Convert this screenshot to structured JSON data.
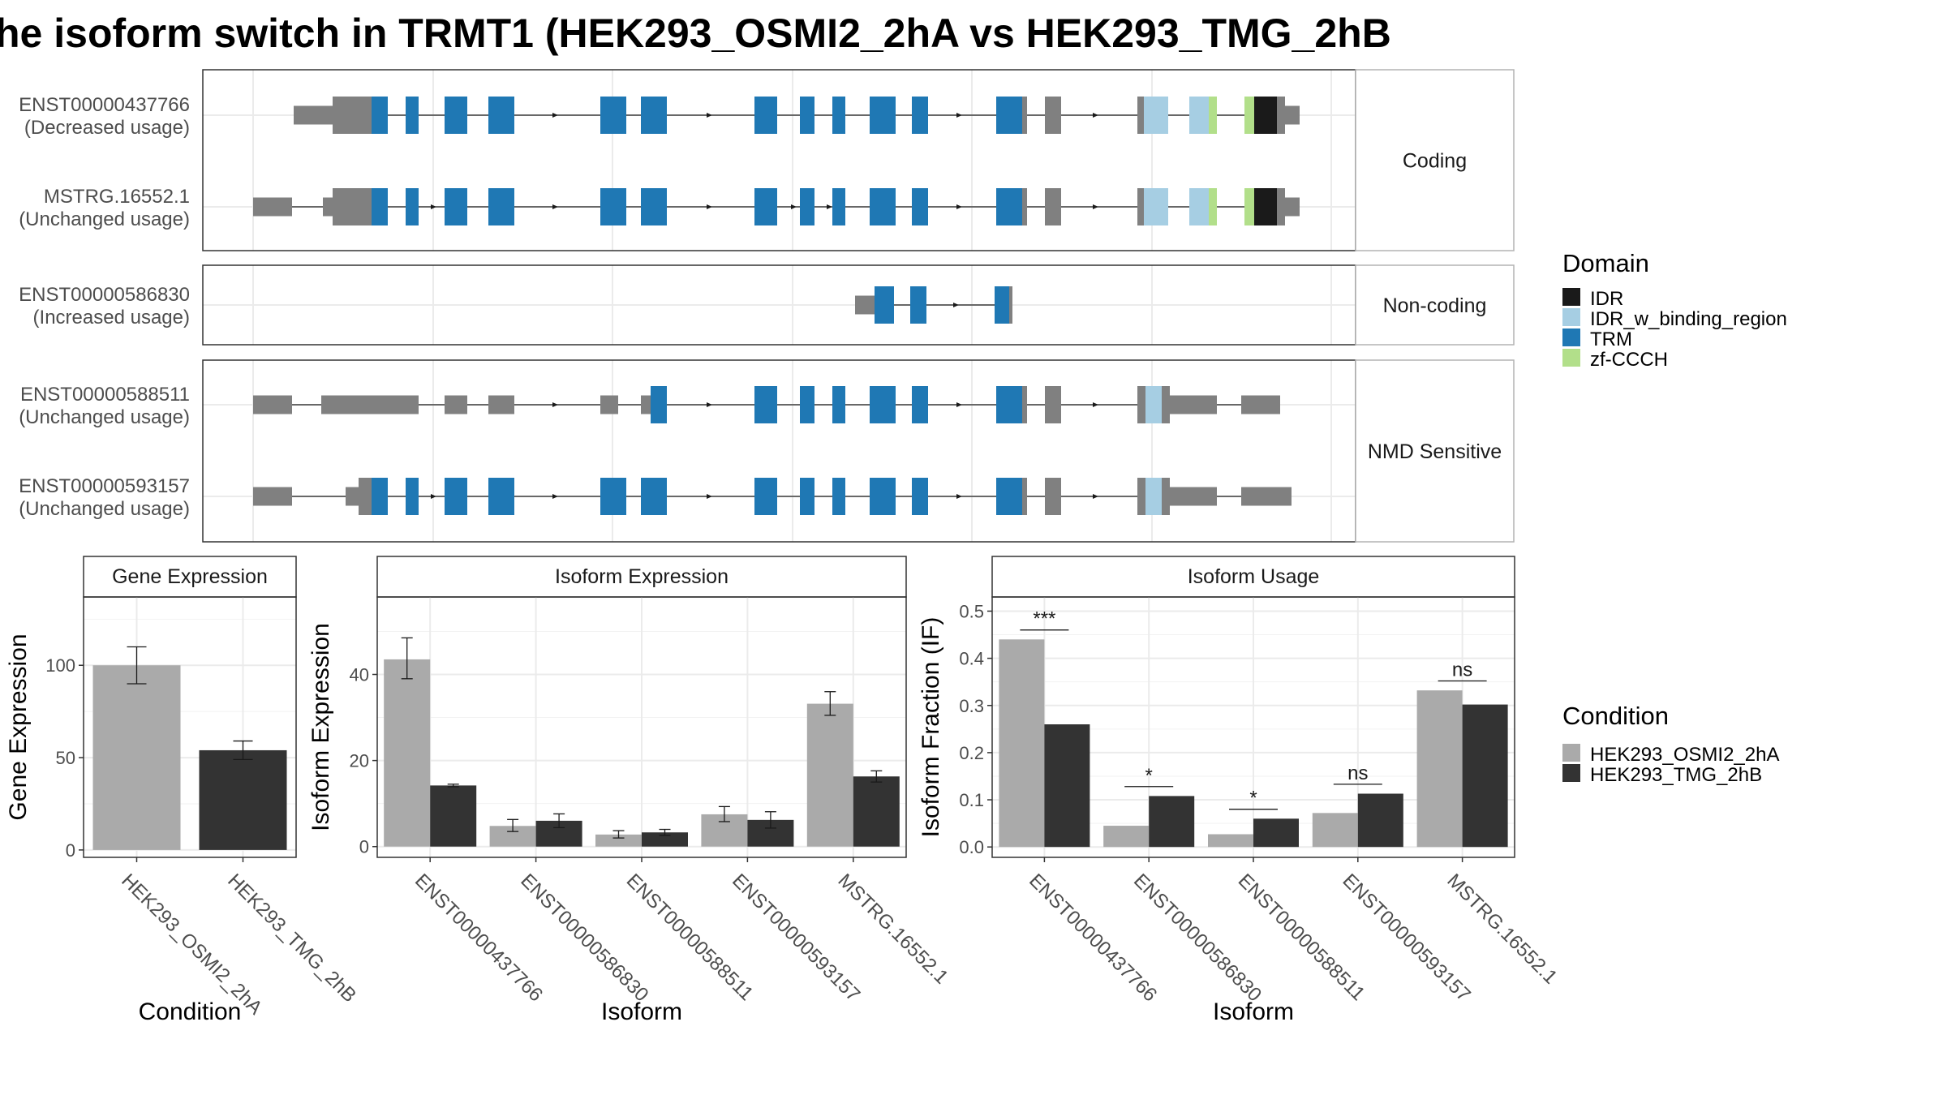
{
  "title": "he isoform switch in TRMT1 (HEK293_OSMI2_2hA vs HEK293_TMG_2hB",
  "colors": {
    "intron_line": "#1a1a1a",
    "utr": "#808080",
    "domains": {
      "IDR": "#1a1a1a",
      "IDR_w_binding_region": "#a6cee3",
      "TRM": "#1f78b4",
      "zf-CCCH": "#b2df8a"
    },
    "conditions": {
      "HEK293_OSMI2_2hA": "#aaaaaa",
      "HEK293_TMG_2hB": "#333333"
    }
  },
  "legend": {
    "domain_title": "Domain",
    "domains": [
      "IDR",
      "IDR_w_binding_region",
      "TRM",
      "zf-CCCH"
    ],
    "condition_title": "Condition",
    "conditions": [
      "HEK293_OSMI2_2hA",
      "HEK293_TMG_2hB"
    ]
  },
  "chart_data": [
    {
      "type": "gene_structure",
      "groups": [
        {
          "label": "Coding",
          "isoforms": [
            {
              "id": "ENST00000437766",
              "usage": "(Decreased usage)",
              "segments": [
                [
                  "utr",
                  362,
                  410,
                  0.5
                ],
                [
                  "utr",
                  410,
                  458,
                  1.0
                ],
                [
                  "TRM",
                  458,
                  478,
                  1.0
                ],
                [
                  "TRM",
                  500,
                  516,
                  1.0
                ],
                [
                  "TRM",
                  548,
                  576,
                  1.0
                ],
                [
                  "TRM",
                  602,
                  634,
                  1.0
                ],
                [
                  "TRM",
                  740,
                  772,
                  1.0
                ],
                [
                  "TRM",
                  790,
                  822,
                  1.0
                ],
                [
                  "TRM",
                  930,
                  958,
                  1.0
                ],
                [
                  "TRM",
                  986,
                  1004,
                  1.0
                ],
                [
                  "TRM",
                  1026,
                  1042,
                  1.0
                ],
                [
                  "TRM",
                  1072,
                  1104,
                  1.0
                ],
                [
                  "TRM",
                  1124,
                  1144,
                  1.0
                ],
                [
                  "TRM",
                  1228,
                  1260,
                  1.0
                ],
                [
                  "utr",
                  1260,
                  1266,
                  1.0
                ],
                [
                  "utr",
                  1288,
                  1308,
                  1.0
                ],
                [
                  "utr",
                  1402,
                  1410,
                  1.0
                ],
                [
                  "IDR_w_binding_region",
                  1410,
                  1440,
                  1.0
                ],
                [
                  "IDR_w_binding_region",
                  1466,
                  1490,
                  1.0
                ],
                [
                  "zf-CCCH",
                  1490,
                  1500,
                  1.0
                ],
                [
                  "zf-CCCH",
                  1534,
                  1546,
                  1.0
                ],
                [
                  "IDR",
                  1546,
                  1574,
                  1.0
                ],
                [
                  "utr",
                  1574,
                  1584,
                  1.0
                ],
                [
                  "utr",
                  1584,
                  1602,
                  0.5
                ]
              ],
              "arrows": [
                686,
                876,
                1184,
                1352
              ]
            },
            {
              "id": "MSTRG.16552.1",
              "usage": "(Unchanged usage)",
              "segments": [
                [
                  "utr",
                  312,
                  360,
                  0.5
                ],
                [
                  "utr",
                  398,
                  410,
                  0.5
                ],
                [
                  "utr",
                  410,
                  458,
                  1.0
                ],
                [
                  "TRM",
                  458,
                  478,
                  1.0
                ],
                [
                  "TRM",
                  500,
                  516,
                  1.0
                ],
                [
                  "TRM",
                  548,
                  576,
                  1.0
                ],
                [
                  "TRM",
                  602,
                  634,
                  1.0
                ],
                [
                  "TRM",
                  740,
                  772,
                  1.0
                ],
                [
                  "TRM",
                  790,
                  822,
                  1.0
                ],
                [
                  "TRM",
                  930,
                  958,
                  1.0
                ],
                [
                  "TRM",
                  986,
                  1004,
                  1.0
                ],
                [
                  "TRM",
                  1026,
                  1042,
                  1.0
                ],
                [
                  "TRM",
                  1072,
                  1104,
                  1.0
                ],
                [
                  "TRM",
                  1124,
                  1144,
                  1.0
                ],
                [
                  "TRM",
                  1228,
                  1260,
                  1.0
                ],
                [
                  "utr",
                  1260,
                  1266,
                  1.0
                ],
                [
                  "utr",
                  1288,
                  1308,
                  1.0
                ],
                [
                  "utr",
                  1402,
                  1410,
                  1.0
                ],
                [
                  "IDR_w_binding_region",
                  1410,
                  1440,
                  1.0
                ],
                [
                  "IDR_w_binding_region",
                  1466,
                  1490,
                  1.0
                ],
                [
                  "zf-CCCH",
                  1490,
                  1500,
                  1.0
                ],
                [
                  "zf-CCCH",
                  1534,
                  1546,
                  1.0
                ],
                [
                  "IDR",
                  1546,
                  1574,
                  1.0
                ],
                [
                  "utr",
                  1574,
                  1584,
                  1.0
                ],
                [
                  "utr",
                  1584,
                  1602,
                  0.5
                ]
              ],
              "arrows": [
                536,
                686,
                876,
                980,
                1024,
                1184,
                1352
              ]
            }
          ]
        },
        {
          "label": "Non-coding",
          "isoforms": [
            {
              "id": "ENST00000586830",
              "usage": "(Increased usage)",
              "segments": [
                [
                  "utr",
                  1054,
                  1078,
                  0.5
                ],
                [
                  "TRM",
                  1078,
                  1102,
                  1.0
                ],
                [
                  "TRM",
                  1122,
                  1142,
                  1.0
                ],
                [
                  "TRM",
                  1226,
                  1244,
                  1.0
                ],
                [
                  "utr",
                  1244,
                  1248,
                  1.0
                ]
              ],
              "arrows": [
                1180
              ]
            }
          ]
        },
        {
          "label": "NMD Sensitive",
          "isoforms": [
            {
              "id": "ENST00000588511",
              "usage": "(Unchanged usage)",
              "segments": [
                [
                  "utr",
                  312,
                  360,
                  0.5
                ],
                [
                  "utr",
                  396,
                  516,
                  0.5
                ],
                [
                  "utr",
                  548,
                  576,
                  0.5
                ],
                [
                  "utr",
                  602,
                  634,
                  0.5
                ],
                [
                  "utr",
                  740,
                  762,
                  0.5
                ],
                [
                  "utr",
                  790,
                  802,
                  0.5
                ],
                [
                  "TRM",
                  802,
                  822,
                  1.0
                ],
                [
                  "TRM",
                  930,
                  958,
                  1.0
                ],
                [
                  "TRM",
                  986,
                  1004,
                  1.0
                ],
                [
                  "TRM",
                  1026,
                  1042,
                  1.0
                ],
                [
                  "TRM",
                  1072,
                  1104,
                  1.0
                ],
                [
                  "TRM",
                  1124,
                  1144,
                  1.0
                ],
                [
                  "TRM",
                  1228,
                  1260,
                  1.0
                ],
                [
                  "utr",
                  1260,
                  1266,
                  1.0
                ],
                [
                  "utr",
                  1288,
                  1308,
                  1.0
                ],
                [
                  "utr",
                  1402,
                  1412,
                  1.0
                ],
                [
                  "IDR_w_binding_region",
                  1412,
                  1432,
                  1.0
                ],
                [
                  "utr",
                  1432,
                  1442,
                  1.0
                ],
                [
                  "utr",
                  1442,
                  1500,
                  0.5
                ],
                [
                  "utr",
                  1530,
                  1578,
                  0.5
                ]
              ],
              "arrows": [
                686,
                876,
                1184,
                1352
              ]
            },
            {
              "id": "ENST00000593157",
              "usage": "(Unchanged usage)",
              "segments": [
                [
                  "utr",
                  312,
                  360,
                  0.5
                ],
                [
                  "utr",
                  426,
                  442,
                  0.5
                ],
                [
                  "utr",
                  442,
                  458,
                  1.0
                ],
                [
                  "TRM",
                  458,
                  478,
                  1.0
                ],
                [
                  "TRM",
                  500,
                  516,
                  1.0
                ],
                [
                  "TRM",
                  548,
                  576,
                  1.0
                ],
                [
                  "TRM",
                  602,
                  634,
                  1.0
                ],
                [
                  "TRM",
                  740,
                  772,
                  1.0
                ],
                [
                  "TRM",
                  790,
                  822,
                  1.0
                ],
                [
                  "TRM",
                  930,
                  958,
                  1.0
                ],
                [
                  "TRM",
                  986,
                  1004,
                  1.0
                ],
                [
                  "TRM",
                  1026,
                  1042,
                  1.0
                ],
                [
                  "TRM",
                  1072,
                  1104,
                  1.0
                ],
                [
                  "TRM",
                  1124,
                  1144,
                  1.0
                ],
                [
                  "TRM",
                  1228,
                  1260,
                  1.0
                ],
                [
                  "utr",
                  1260,
                  1266,
                  1.0
                ],
                [
                  "utr",
                  1288,
                  1308,
                  1.0
                ],
                [
                  "utr",
                  1402,
                  1412,
                  1.0
                ],
                [
                  "IDR_w_binding_region",
                  1412,
                  1432,
                  1.0
                ],
                [
                  "utr",
                  1432,
                  1442,
                  1.0
                ],
                [
                  "utr",
                  1442,
                  1500,
                  0.5
                ],
                [
                  "utr",
                  1530,
                  1592,
                  0.5
                ]
              ],
              "arrows": [
                536,
                686,
                876,
                1184,
                1352
              ]
            }
          ]
        }
      ]
    },
    {
      "type": "bar",
      "title": "Gene Expression",
      "xlabel": "Condition",
      "ylabel": "Gene Expression",
      "categories": [
        "HEK293_OSMI2_2hA",
        "HEK293_TMG_2hB"
      ],
      "values": [
        100,
        54
      ],
      "errors": [
        [
          90,
          110
        ],
        [
          49,
          59
        ]
      ],
      "ylim": [
        -4,
        137
      ],
      "yticks": [
        0,
        50,
        100
      ]
    },
    {
      "type": "bar",
      "title": "Isoform Expression",
      "xlabel": "Isoform",
      "ylabel": "Isoform Expression",
      "categories": [
        "ENST00000437766",
        "ENST00000586830",
        "ENST00000588511",
        "ENST00000593157",
        "MSTRG.16552.1"
      ],
      "series": [
        {
          "name": "HEK293_OSMI2_2hA",
          "values": [
            43.5,
            4.8,
            2.8,
            7.5,
            33.2
          ],
          "errors": [
            [
              39,
              48.5
            ],
            [
              3.5,
              6.3
            ],
            [
              2.0,
              3.7
            ],
            [
              5.8,
              9.3
            ],
            [
              30.5,
              36
            ]
          ]
        },
        {
          "name": "HEK293_TMG_2hB",
          "values": [
            14.2,
            6.0,
            3.3,
            6.2,
            16.3
          ],
          "errors": [
            [
              13.9,
              14.5
            ],
            [
              4.4,
              7.6
            ],
            [
              2.6,
              4.0
            ],
            [
              4.3,
              8.1
            ],
            [
              15.0,
              17.6
            ]
          ]
        }
      ],
      "ylim": [
        -2.5,
        58
      ],
      "yticks": [
        0,
        20,
        40
      ]
    },
    {
      "type": "bar",
      "title": "Isoform Usage",
      "xlabel": "Isoform",
      "ylabel": "Isoform Fraction (IF)",
      "categories": [
        "ENST00000437766",
        "ENST00000586830",
        "ENST00000588511",
        "ENST00000593157",
        "MSTRG.16552.1"
      ],
      "series": [
        {
          "name": "HEK293_OSMI2_2hA",
          "values": [
            0.44,
            0.045,
            0.027,
            0.072,
            0.332
          ]
        },
        {
          "name": "HEK293_TMG_2hB",
          "values": [
            0.26,
            0.108,
            0.06,
            0.113,
            0.302
          ]
        }
      ],
      "significance": [
        {
          "label": "***",
          "y": 0.46
        },
        {
          "label": "*",
          "y": 0.128
        },
        {
          "label": "*",
          "y": 0.08
        },
        {
          "label": "ns",
          "y": 0.133
        },
        {
          "label": "ns",
          "y": 0.352
        }
      ],
      "ylim": [
        -0.022,
        0.53
      ],
      "yticks": [
        0.0,
        0.1,
        0.2,
        0.3,
        0.4,
        0.5
      ],
      "ytick_labels": [
        "0.0",
        "0.1",
        "0.2",
        "0.3",
        "0.4",
        "0.5"
      ]
    }
  ]
}
